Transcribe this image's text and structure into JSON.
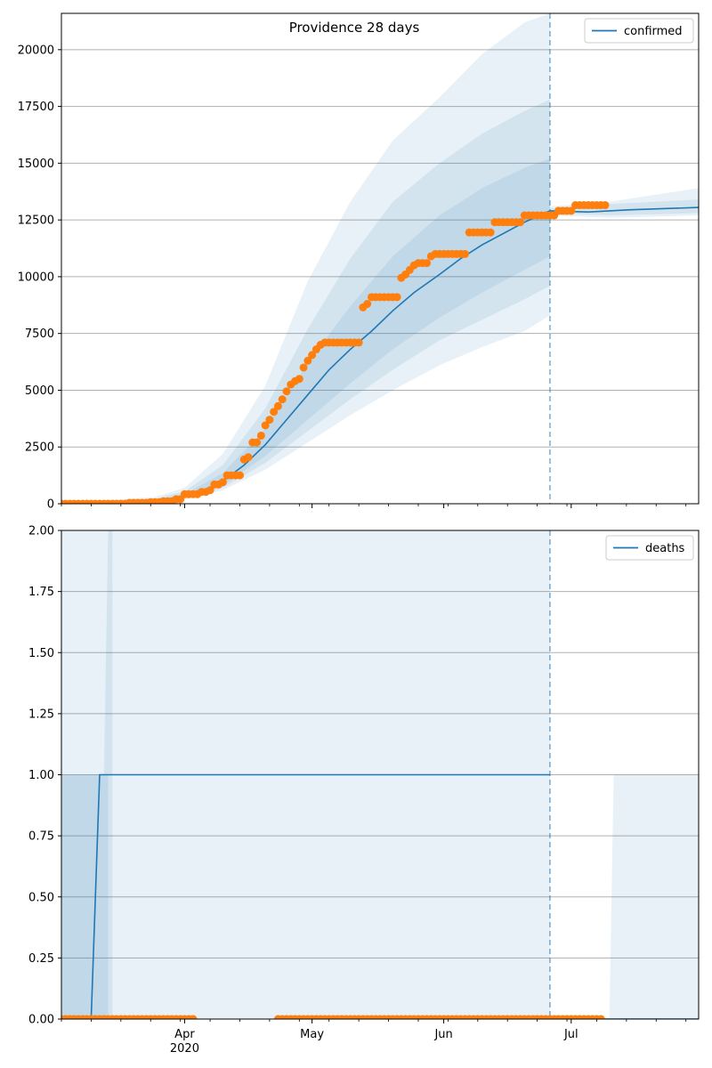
{
  "chart_data": [
    {
      "type": "line",
      "title": "Providence 28 days",
      "xlabel": "",
      "ylabel": "",
      "x_axis": {
        "type": "date",
        "range": [
          "2020-03-03",
          "2020-07-31"
        ],
        "tick_labels": [
          {
            "date": "2020-04-01",
            "label": "Apr"
          },
          {
            "date": "2020-05-01",
            "label": "May"
          },
          {
            "date": "2020-06-01",
            "label": "Jun"
          },
          {
            "date": "2020-07-01",
            "label": "Jul"
          }
        ],
        "year_label": "2020"
      },
      "ylim": [
        0,
        21600
      ],
      "y_ticks": [
        "0",
        "2500",
        "5000",
        "7500",
        "10000",
        "12500",
        "15000",
        "17500",
        "20000"
      ],
      "grid": "y",
      "legend": {
        "position": "top-right",
        "entries": [
          "confirmed"
        ]
      },
      "forecast_start": "2020-06-26",
      "series": [
        {
          "name": "confirmed",
          "kind": "line",
          "color": "#1f77b4",
          "points": [
            [
              "2020-03-03",
              0
            ],
            [
              "2020-03-15",
              10
            ],
            [
              "2020-03-25",
              120
            ],
            [
              "2020-04-01",
              300
            ],
            [
              "2020-04-06",
              550
            ],
            [
              "2020-04-10",
              1000
            ],
            [
              "2020-04-15",
              1700
            ],
            [
              "2020-04-20",
              2600
            ],
            [
              "2020-04-25",
              3700
            ],
            [
              "2020-04-30",
              4800
            ],
            [
              "2020-05-05",
              5900
            ],
            [
              "2020-05-10",
              6800
            ],
            [
              "2020-05-15",
              7600
            ],
            [
              "2020-05-20",
              8500
            ],
            [
              "2020-05-25",
              9300
            ],
            [
              "2020-05-31",
              10100
            ],
            [
              "2020-06-05",
              10800
            ],
            [
              "2020-06-10",
              11400
            ],
            [
              "2020-06-15",
              11900
            ],
            [
              "2020-06-20",
              12400
            ],
            [
              "2020-06-26",
              12900
            ],
            [
              "2020-07-05",
              12850
            ],
            [
              "2020-07-15",
              12950
            ],
            [
              "2020-07-31",
              13050
            ]
          ]
        },
        {
          "name": "",
          "kind": "scatter",
          "color": "#ff7f0e",
          "steps": [
            [
              "2020-03-03",
              0
            ],
            [
              "2020-03-19",
              40
            ],
            [
              "2020-03-24",
              70
            ],
            [
              "2020-03-27",
              110
            ],
            [
              "2020-03-30",
              200
            ],
            [
              "2020-04-01",
              420
            ],
            [
              "2020-04-05",
              520
            ],
            [
              "2020-04-07",
              600
            ],
            [
              "2020-04-08",
              850
            ],
            [
              "2020-04-10",
              950
            ],
            [
              "2020-04-11",
              1250
            ],
            [
              "2020-04-15",
              1950
            ],
            [
              "2020-04-16",
              2050
            ],
            [
              "2020-04-17",
              2700
            ],
            [
              "2020-04-19",
              3000
            ],
            [
              "2020-04-20",
              3450
            ],
            [
              "2020-04-21",
              3700
            ],
            [
              "2020-04-22",
              4050
            ],
            [
              "2020-04-23",
              4300
            ],
            [
              "2020-04-24",
              4600
            ],
            [
              "2020-04-25",
              4950
            ],
            [
              "2020-04-26",
              5250
            ],
            [
              "2020-04-27",
              5400
            ],
            [
              "2020-04-28",
              5500
            ],
            [
              "2020-04-29",
              6000
            ],
            [
              "2020-04-30",
              6300
            ],
            [
              "2020-05-01",
              6550
            ],
            [
              "2020-05-02",
              6800
            ],
            [
              "2020-05-03",
              7000
            ],
            [
              "2020-05-04",
              7100
            ],
            [
              "2020-05-13",
              8650
            ],
            [
              "2020-05-14",
              8800
            ],
            [
              "2020-05-15",
              9100
            ],
            [
              "2020-05-22",
              9950
            ],
            [
              "2020-05-23",
              10100
            ],
            [
              "2020-05-24",
              10300
            ],
            [
              "2020-05-25",
              10500
            ],
            [
              "2020-05-26",
              10600
            ],
            [
              "2020-05-29",
              10900
            ],
            [
              "2020-05-30",
              11000
            ],
            [
              "2020-06-07",
              11950
            ],
            [
              "2020-06-13",
              12400
            ],
            [
              "2020-06-20",
              12700
            ],
            [
              "2020-06-28",
              12900
            ],
            [
              "2020-07-02",
              13150
            ],
            [
              "2020-07-09",
              13150
            ]
          ]
        }
      ],
      "bands": [
        {
          "points": [
            [
              "2020-03-03",
              0,
              0
            ],
            [
              "2020-03-25",
              60,
              300
            ],
            [
              "2020-04-01",
              180,
              700
            ],
            [
              "2020-04-10",
              600,
              2200
            ],
            [
              "2020-04-20",
              1500,
              5200
            ],
            [
              "2020-04-30",
              2700,
              9800
            ],
            [
              "2020-05-10",
              3900,
              13300
            ],
            [
              "2020-05-20",
              5000,
              16000
            ],
            [
              "2020-05-31",
              6100,
              17900
            ],
            [
              "2020-06-10",
              6900,
              19800
            ],
            [
              "2020-06-20",
              7600,
              21200
            ],
            [
              "2020-06-26",
              8300,
              21600
            ]
          ]
        },
        {
          "points": [
            [
              "2020-03-03",
              0,
              0
            ],
            [
              "2020-03-25",
              80,
              220
            ],
            [
              "2020-04-01",
              220,
              550
            ],
            [
              "2020-04-10",
              700,
              1700
            ],
            [
              "2020-04-20",
              1800,
              4200
            ],
            [
              "2020-04-30",
              3200,
              7700
            ],
            [
              "2020-05-10",
              4600,
              10800
            ],
            [
              "2020-05-20",
              5900,
              13300
            ],
            [
              "2020-05-31",
              7200,
              15000
            ],
            [
              "2020-06-10",
              8100,
              16300
            ],
            [
              "2020-06-20",
              9000,
              17300
            ],
            [
              "2020-06-26",
              9600,
              17800
            ]
          ]
        },
        {
          "points": [
            [
              "2020-03-03",
              0,
              0
            ],
            [
              "2020-03-25",
              95,
              170
            ],
            [
              "2020-04-01",
              250,
              420
            ],
            [
              "2020-04-10",
              800,
              1350
            ],
            [
              "2020-04-20",
              2100,
              3300
            ],
            [
              "2020-04-30",
              3700,
              6200
            ],
            [
              "2020-05-10",
              5300,
              8700
            ],
            [
              "2020-05-20",
              6800,
              10900
            ],
            [
              "2020-05-31",
              8200,
              12700
            ],
            [
              "2020-06-10",
              9300,
              13900
            ],
            [
              "2020-06-20",
              10300,
              14800
            ],
            [
              "2020-06-26",
              10900,
              15200
            ]
          ]
        },
        {
          "points": [
            [
              "2020-06-26",
              12700,
              13100
            ],
            [
              "2020-07-10",
              12600,
              13300
            ],
            [
              "2020-07-31",
              12700,
              13900
            ]
          ]
        },
        {
          "points": [
            [
              "2020-06-26",
              12800,
              13000
            ],
            [
              "2020-07-10",
              12700,
              13200
            ],
            [
              "2020-07-31",
              12800,
              13400
            ]
          ]
        }
      ]
    },
    {
      "type": "line",
      "title": "",
      "xlabel": "",
      "ylabel": "",
      "x_axis": {
        "type": "date",
        "range": [
          "2020-03-03",
          "2020-07-31"
        ]
      },
      "ylim": [
        0,
        2
      ],
      "y_ticks": [
        "0.00",
        "0.25",
        "0.50",
        "0.75",
        "1.00",
        "1.25",
        "1.50",
        "1.75",
        "2.00"
      ],
      "grid": "y",
      "legend": {
        "position": "top-right",
        "entries": [
          "deaths"
        ]
      },
      "forecast_start": "2020-06-26",
      "series": [
        {
          "name": "deaths",
          "kind": "line",
          "color": "#1f77b4",
          "points": [
            [
              "2020-03-03",
              0
            ],
            [
              "2020-03-10",
              0
            ],
            [
              "2020-03-12",
              1
            ],
            [
              "2020-06-26",
              1
            ]
          ],
          "forecast_points": [
            [
              "2020-06-26",
              0
            ],
            [
              "2020-07-31",
              0
            ]
          ]
        },
        {
          "name": "",
          "kind": "scatter",
          "color": "#ff7f0e",
          "segments": [
            [
              "2020-03-03",
              "2020-04-03"
            ],
            [
              "2020-04-23",
              "2020-07-08"
            ]
          ],
          "value": 0
        }
      ],
      "bands": [
        {
          "points": [
            [
              "2020-03-03",
              0,
              2
            ],
            [
              "2020-03-14",
              0,
              2
            ],
            [
              "2020-03-15",
              0,
              2
            ]
          ]
        },
        {
          "points": [
            [
              "2020-03-03",
              0,
              1
            ],
            [
              "2020-03-13",
              0,
              1
            ],
            [
              "2020-03-14",
              0,
              2
            ],
            [
              "2020-06-26",
              0,
              2
            ]
          ]
        },
        {
          "points": [
            [
              "2020-03-03",
              0,
              1
            ],
            [
              "2020-03-14",
              0,
              1
            ]
          ]
        },
        {
          "points": [
            [
              "2020-07-10",
              0,
              0
            ],
            [
              "2020-07-11",
              0,
              1
            ],
            [
              "2020-07-31",
              0,
              1
            ]
          ]
        }
      ]
    }
  ]
}
